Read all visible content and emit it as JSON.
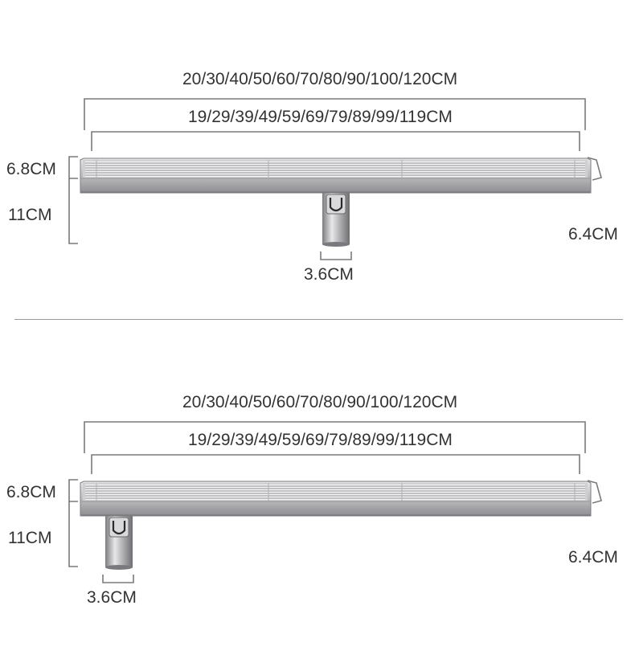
{
  "diagrams": [
    {
      "outer_length": "20/30/40/50/60/70/80/90/100/120CM",
      "inner_length": "19/29/39/49/59/69/79/89/99/119CM",
      "height_total": "6.8CM",
      "height_outlet": "11CM",
      "width": "6.4CM",
      "outlet_diameter": "3.6CM",
      "outlet_position": "center"
    },
    {
      "outer_length": "20/30/40/50/60/70/80/90/100/120CM",
      "inner_length": "19/29/39/49/59/69/79/89/99/119CM",
      "height_total": "6.8CM",
      "height_outlet": "11CM",
      "width": "6.4CM",
      "outlet_diameter": "3.6CM",
      "outlet_position": "end"
    }
  ],
  "colors": {
    "steel_light": "#d4d4d6",
    "steel_dark": "#8c8c90",
    "dimension_line": "#7a7a7a",
    "text": "#333333"
  }
}
